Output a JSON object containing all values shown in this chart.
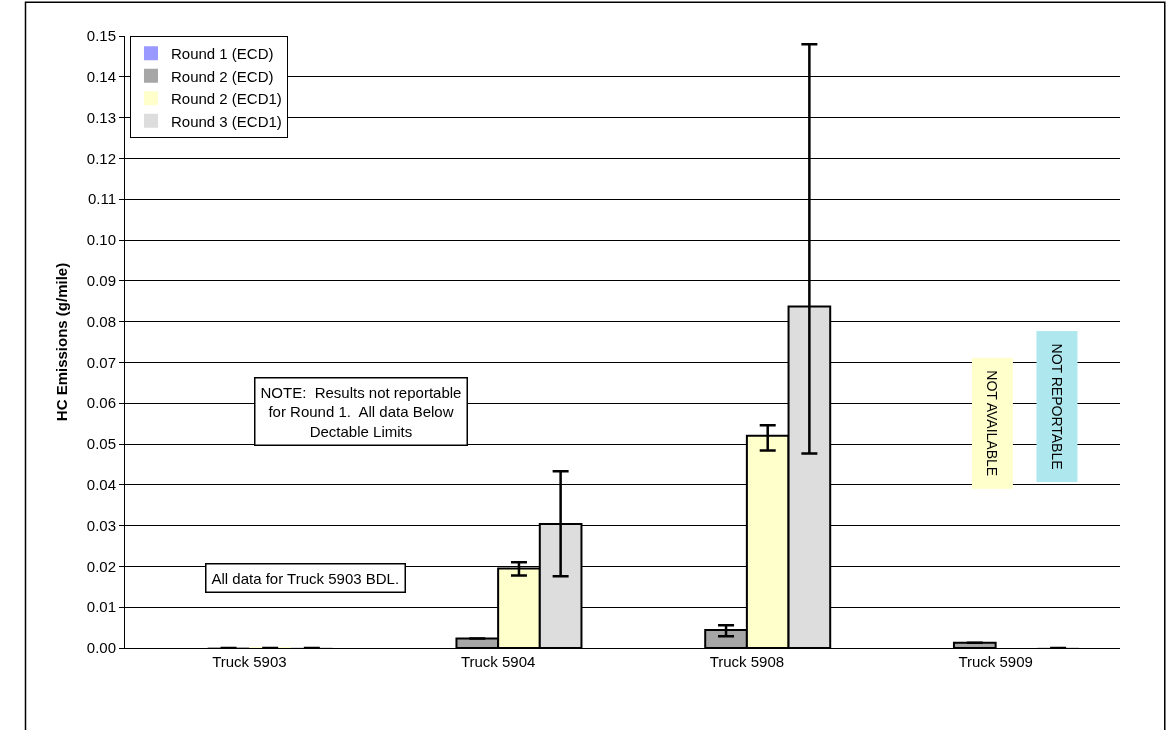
{
  "chart_data": {
    "type": "bar",
    "ylabel": "HC Emissions (g/mile)",
    "categories": [
      "Truck 5903",
      "Truck 5904",
      "Truck 5908",
      "Truck 5909"
    ],
    "series": [
      {
        "name": "Round 1 (ECD)",
        "color": "#9999ff",
        "values": [
          null,
          null,
          null,
          null
        ]
      },
      {
        "name": "Round 2 (ECD)",
        "color": "#a6a6a6",
        "values": [
          0,
          0.0023,
          0.0044,
          0.0013
        ],
        "errors": [
          null,
          null,
          [
            0.0029,
            0.0056
          ],
          null
        ]
      },
      {
        "name": "Round 2 (ECD1)",
        "color": "#ffffcc",
        "values": [
          0,
          0.0195,
          0.052,
          null
        ],
        "errors": [
          null,
          [
            0.0178,
            0.021
          ],
          [
            0.0484,
            0.0546
          ],
          null
        ]
      },
      {
        "name": "Round 3 (ECD1)",
        "color": "#dddddd",
        "values": [
          0,
          0.0304,
          0.0837,
          0
        ],
        "errors": [
          null,
          [
            0.0176,
            0.0433
          ],
          [
            0.0477,
            0.148
          ],
          null
        ]
      }
    ],
    "ylim": [
      0,
      0.15
    ],
    "yticks": [
      {
        "value": 0,
        "label": "0.00"
      },
      {
        "value": 0.01,
        "label": "0.01"
      },
      {
        "value": 0.02,
        "label": "0.02"
      },
      {
        "value": 0.03,
        "label": "0.03"
      },
      {
        "value": 0.04,
        "label": "0.04"
      },
      {
        "value": 0.05,
        "label": "0.05"
      },
      {
        "value": 0.06,
        "label": "0.06"
      },
      {
        "value": 0.07,
        "label": "0.07"
      },
      {
        "value": 0.08,
        "label": "0.08"
      },
      {
        "value": 0.09,
        "label": "0.09"
      },
      {
        "value": 0.1,
        "label": "0.10"
      },
      {
        "value": 0.11,
        "label": "0.11"
      },
      {
        "value": 0.12,
        "label": "0.12"
      },
      {
        "value": 0.13,
        "label": "0.13"
      },
      {
        "value": 0.14,
        "label": "0.14"
      },
      {
        "value": 0.15,
        "label": "0.15"
      }
    ],
    "annotations": [
      "NOTE:  Results not reportable for Round 1.  All data Below Dectable Limits",
      "All data for Truck 5903 BDL.",
      "NOT AVAILABLE",
      "NOT REPORTABLE"
    ],
    "grid": "y",
    "legend": "top left"
  }
}
